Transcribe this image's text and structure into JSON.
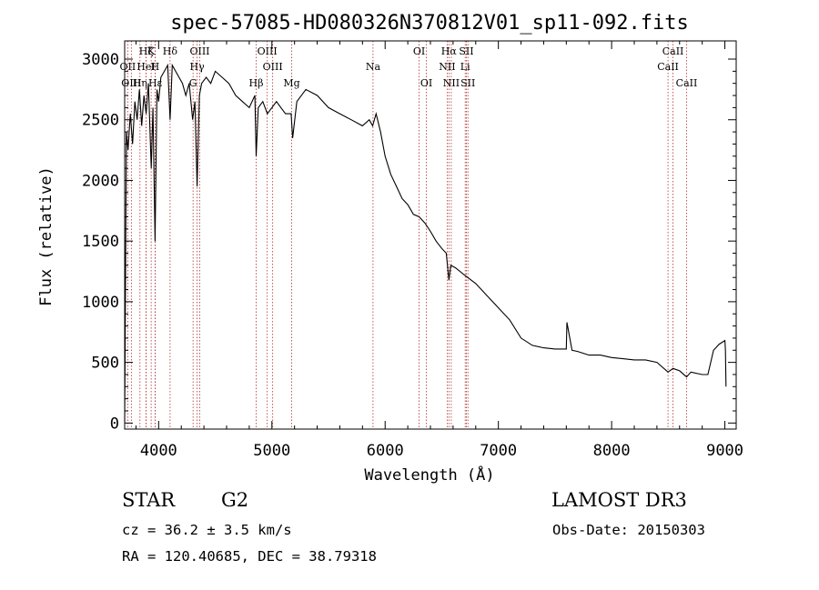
{
  "chart_data": {
    "type": "line",
    "title": "spec-57085-HD080326N370812V01_sp11-092.fits",
    "xlabel": "Wavelength (Å)",
    "ylabel": "Flux (relative)",
    "xlim": [
      3700,
      9100
    ],
    "ylim": [
      -50,
      3150
    ],
    "x_ticks": [
      4000,
      5000,
      6000,
      7000,
      8000,
      9000
    ],
    "x_tick_labels": [
      "4000",
      "5000",
      "6000",
      "7000",
      "8000",
      "9000"
    ],
    "y_ticks": [
      0,
      500,
      1000,
      1500,
      2000,
      2500,
      3000
    ],
    "y_tick_labels": [
      "0",
      "500",
      "1000",
      "1500",
      "2000",
      "2500",
      "3000"
    ],
    "series": [
      {
        "name": "spectrum",
        "x": [
          3700,
          3715,
          3730,
          3750,
          3770,
          3790,
          3810,
          3830,
          3850,
          3870,
          3890,
          3910,
          3935,
          3950,
          3968,
          3985,
          4000,
          4020,
          4050,
          4080,
          4101,
          4120,
          4150,
          4180,
          4210,
          4240,
          4270,
          4300,
          4320,
          4340,
          4360,
          4380,
          4420,
          4460,
          4500,
          4560,
          4620,
          4680,
          4740,
          4800,
          4850,
          4861,
          4880,
          4920,
          4960,
          5000,
          5040,
          5080,
          5120,
          5170,
          5183,
          5220,
          5300,
          5400,
          5500,
          5600,
          5700,
          5800,
          5860,
          5890,
          5920,
          5960,
          6000,
          6050,
          6100,
          6150,
          6200,
          6250,
          6300,
          6350,
          6400,
          6450,
          6500,
          6540,
          6563,
          6580,
          6620,
          6700,
          6800,
          6900,
          7000,
          7100,
          7200,
          7300,
          7400,
          7500,
          7600,
          7605,
          7650,
          7700,
          7800,
          7900,
          8000,
          8100,
          8200,
          8300,
          8400,
          8498,
          8542,
          8600,
          8662,
          8700,
          8800,
          8850,
          8900,
          8950,
          9000,
          9005,
          9010
        ],
        "y": [
          10,
          2400,
          2250,
          2550,
          2300,
          2650,
          2500,
          2750,
          2450,
          2700,
          2550,
          2800,
          2100,
          2600,
          1500,
          2750,
          2650,
          2850,
          2900,
          2950,
          2500,
          2950,
          2900,
          2850,
          2800,
          2700,
          2800,
          2500,
          2650,
          1950,
          2700,
          2800,
          2850,
          2800,
          2900,
          2850,
          2800,
          2700,
          2650,
          2600,
          2700,
          2200,
          2600,
          2650,
          2550,
          2600,
          2650,
          2600,
          2550,
          2550,
          2350,
          2650,
          2750,
          2700,
          2600,
          2550,
          2500,
          2450,
          2500,
          2450,
          2550,
          2400,
          2200,
          2050,
          1950,
          1850,
          1800,
          1720,
          1700,
          1650,
          1580,
          1500,
          1440,
          1400,
          1180,
          1300,
          1280,
          1220,
          1150,
          1050,
          950,
          850,
          700,
          640,
          620,
          610,
          610,
          830,
          600,
          590,
          560,
          560,
          540,
          530,
          520,
          520,
          500,
          420,
          450,
          430,
          380,
          420,
          400,
          400,
          600,
          650,
          680,
          600,
          300
        ]
      }
    ],
    "line_markers": [
      {
        "label": "Hδ",
        "x": 4101,
        "row": 1
      },
      {
        "label": "OII",
        "x": 3727,
        "row": 2
      },
      {
        "label": "OIII",
        "x": 3759,
        "row": 3
      },
      {
        "label": "K",
        "x": 3934,
        "row": 1
      },
      {
        "label": "H",
        "x": 3969,
        "row": 2
      },
      {
        "label": "Hε",
        "x": 3970,
        "row": 3
      },
      {
        "label": "Hζ",
        "x": 3889,
        "row": 1
      },
      {
        "label": "Hη",
        "x": 3835,
        "row": 3
      },
      {
        "label": "HeI",
        "x": 3889,
        "row": 2
      },
      {
        "label": "OIII",
        "x": 4363,
        "row": 1
      },
      {
        "label": "Hγ",
        "x": 4340,
        "row": 2
      },
      {
        "label": "G",
        "x": 4304,
        "row": 3
      },
      {
        "label": "OIII",
        "x": 4959,
        "row": 1
      },
      {
        "label": "OIII",
        "x": 5007,
        "row": 2
      },
      {
        "label": "Hβ",
        "x": 4861,
        "row": 3
      },
      {
        "label": "Mg",
        "x": 5175,
        "row": 3
      },
      {
        "label": "Na",
        "x": 5893,
        "row": 2
      },
      {
        "label": "OI",
        "x": 6300,
        "row": 1
      },
      {
        "label": "OI",
        "x": 6364,
        "row": 3
      },
      {
        "label": "Hα",
        "x": 6563,
        "row": 1
      },
      {
        "label": "NII",
        "x": 6548,
        "row": 2
      },
      {
        "label": "NII",
        "x": 6584,
        "row": 3
      },
      {
        "label": "SII",
        "x": 6717,
        "row": 1
      },
      {
        "label": "Li",
        "x": 6707,
        "row": 2
      },
      {
        "label": "SII",
        "x": 6731,
        "row": 3
      },
      {
        "label": "CaII",
        "x": 8542,
        "row": 1
      },
      {
        "label": "CaII",
        "x": 8498,
        "row": 2
      },
      {
        "label": "CaII",
        "x": 8662,
        "row": 3
      }
    ]
  },
  "info": {
    "object_type": "STAR",
    "subclass": "G2",
    "survey": "LAMOST DR3",
    "redshift": "cz = 36.2 ± 3.5 km/s",
    "obs_date": "Obs-Date: 20150303",
    "coords": "RA = 120.40685, DEC =  38.79318"
  }
}
